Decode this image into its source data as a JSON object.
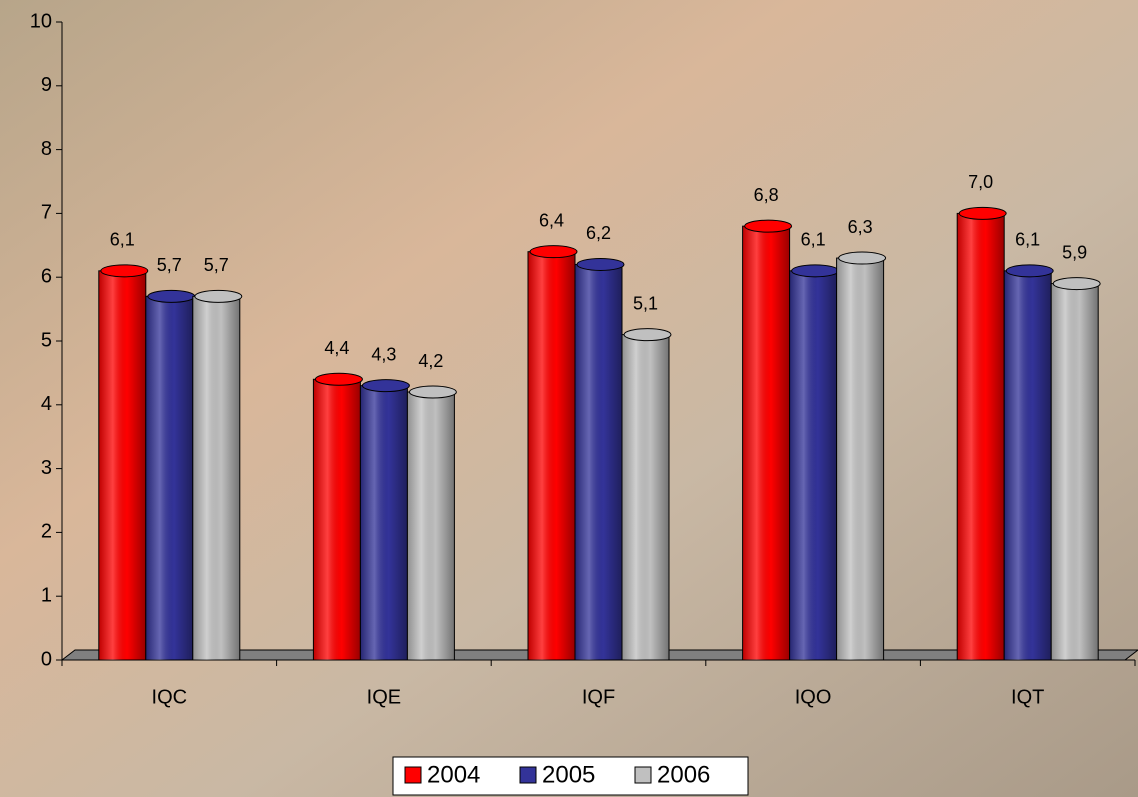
{
  "chart_data": {
    "type": "bar",
    "categories": [
      "IQC",
      "IQE",
      "IQF",
      "IQO",
      "IQT"
    ],
    "series": [
      {
        "name": "2004",
        "color": "#ff0000",
        "values": [
          6.1,
          4.4,
          6.4,
          6.8,
          7.0
        ],
        "value_labels": [
          "6,1",
          "4,4",
          "6,4",
          "6,8",
          "7,0"
        ]
      },
      {
        "name": "2005",
        "color": "#333399",
        "values": [
          5.7,
          4.3,
          6.2,
          6.1,
          6.1
        ],
        "value_labels": [
          "5,7",
          "4,3",
          "6,2",
          "6,1",
          "6,1"
        ]
      },
      {
        "name": "2006",
        "color": "#c0c0c0",
        "values": [
          5.7,
          4.2,
          5.1,
          6.3,
          5.9
        ],
        "value_labels": [
          "5,7",
          "4,2",
          "5,1",
          "6,3",
          "5,9"
        ]
      }
    ],
    "ylim": [
      0,
      10
    ],
    "yticks": [
      0,
      1,
      2,
      3,
      4,
      5,
      6,
      7,
      8,
      9,
      10
    ],
    "legend": "bottom"
  }
}
